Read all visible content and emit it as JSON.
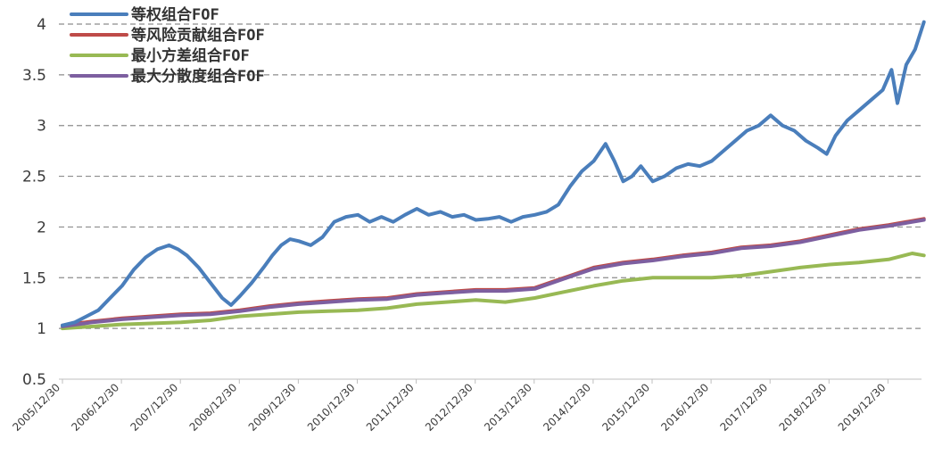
{
  "chart_data": {
    "type": "line",
    "ylim": [
      0.5,
      4
    ],
    "yticks": [
      "0.5",
      "1",
      "1.5",
      "2",
      "2.5",
      "3",
      "3.5",
      "4"
    ],
    "xticks": [
      "2005/12/30",
      "2006/12/30",
      "2007/12/30",
      "2008/12/30",
      "2009/12/30",
      "2010/12/30",
      "2011/12/30",
      "2012/12/30",
      "2013/12/30",
      "2014/12/30",
      "2015/12/30",
      "2016/12/30",
      "2017/12/30",
      "2018/12/30",
      "2019/12/30"
    ],
    "grid": true,
    "legend_position": "top-left",
    "series": [
      {
        "name": "等权组合FOF",
        "color": "#4a7ebb",
        "points": [
          [
            2005.99,
            1.03
          ],
          [
            2006.2,
            1.06
          ],
          [
            2006.4,
            1.12
          ],
          [
            2006.6,
            1.18
          ],
          [
            2006.8,
            1.3
          ],
          [
            2007.0,
            1.42
          ],
          [
            2007.2,
            1.58
          ],
          [
            2007.4,
            1.7
          ],
          [
            2007.6,
            1.78
          ],
          [
            2007.8,
            1.82
          ],
          [
            2007.95,
            1.78
          ],
          [
            2008.1,
            1.72
          ],
          [
            2008.3,
            1.6
          ],
          [
            2008.5,
            1.45
          ],
          [
            2008.7,
            1.3
          ],
          [
            2008.85,
            1.23
          ],
          [
            2009.0,
            1.32
          ],
          [
            2009.2,
            1.45
          ],
          [
            2009.4,
            1.6
          ],
          [
            2009.55,
            1.72
          ],
          [
            2009.7,
            1.82
          ],
          [
            2009.85,
            1.88
          ],
          [
            2010.0,
            1.86
          ],
          [
            2010.2,
            1.82
          ],
          [
            2010.4,
            1.9
          ],
          [
            2010.6,
            2.05
          ],
          [
            2010.8,
            2.1
          ],
          [
            2011.0,
            2.12
          ],
          [
            2011.2,
            2.05
          ],
          [
            2011.4,
            2.1
          ],
          [
            2011.6,
            2.05
          ],
          [
            2011.8,
            2.12
          ],
          [
            2012.0,
            2.18
          ],
          [
            2012.2,
            2.12
          ],
          [
            2012.4,
            2.15
          ],
          [
            2012.6,
            2.1
          ],
          [
            2012.8,
            2.12
          ],
          [
            2013.0,
            2.07
          ],
          [
            2013.2,
            2.08
          ],
          [
            2013.4,
            2.1
          ],
          [
            2013.6,
            2.05
          ],
          [
            2013.8,
            2.1
          ],
          [
            2014.0,
            2.12
          ],
          [
            2014.2,
            2.15
          ],
          [
            2014.4,
            2.22
          ],
          [
            2014.6,
            2.4
          ],
          [
            2014.8,
            2.55
          ],
          [
            2015.0,
            2.65
          ],
          [
            2015.2,
            2.82
          ],
          [
            2015.35,
            2.65
          ],
          [
            2015.5,
            2.45
          ],
          [
            2015.65,
            2.5
          ],
          [
            2015.8,
            2.6
          ],
          [
            2016.0,
            2.45
          ],
          [
            2016.2,
            2.5
          ],
          [
            2016.4,
            2.58
          ],
          [
            2016.6,
            2.62
          ],
          [
            2016.8,
            2.6
          ],
          [
            2017.0,
            2.65
          ],
          [
            2017.2,
            2.75
          ],
          [
            2017.4,
            2.85
          ],
          [
            2017.6,
            2.95
          ],
          [
            2017.8,
            3.0
          ],
          [
            2018.0,
            3.1
          ],
          [
            2018.2,
            3.0
          ],
          [
            2018.4,
            2.95
          ],
          [
            2018.6,
            2.85
          ],
          [
            2018.8,
            2.78
          ],
          [
            2018.95,
            2.72
          ],
          [
            2019.1,
            2.9
          ],
          [
            2019.3,
            3.05
          ],
          [
            2019.5,
            3.15
          ],
          [
            2019.7,
            3.25
          ],
          [
            2019.9,
            3.35
          ],
          [
            2020.05,
            3.55
          ],
          [
            2020.15,
            3.22
          ],
          [
            2020.3,
            3.6
          ],
          [
            2020.45,
            3.75
          ],
          [
            2020.6,
            4.02
          ]
        ]
      },
      {
        "name": "等风险贡献组合FOF",
        "color": "#be4b48",
        "points": [
          [
            2005.99,
            1.03
          ],
          [
            2006.5,
            1.07
          ],
          [
            2007.0,
            1.1
          ],
          [
            2007.5,
            1.12
          ],
          [
            2008.0,
            1.14
          ],
          [
            2008.5,
            1.15
          ],
          [
            2009.0,
            1.18
          ],
          [
            2009.5,
            1.22
          ],
          [
            2010.0,
            1.25
          ],
          [
            2010.5,
            1.27
          ],
          [
            2011.0,
            1.29
          ],
          [
            2011.5,
            1.3
          ],
          [
            2012.0,
            1.34
          ],
          [
            2012.5,
            1.36
          ],
          [
            2013.0,
            1.38
          ],
          [
            2013.5,
            1.38
          ],
          [
            2014.0,
            1.4
          ],
          [
            2014.5,
            1.5
          ],
          [
            2015.0,
            1.6
          ],
          [
            2015.5,
            1.65
          ],
          [
            2016.0,
            1.68
          ],
          [
            2016.5,
            1.72
          ],
          [
            2017.0,
            1.75
          ],
          [
            2017.5,
            1.8
          ],
          [
            2018.0,
            1.82
          ],
          [
            2018.5,
            1.86
          ],
          [
            2019.0,
            1.92
          ],
          [
            2019.5,
            1.98
          ],
          [
            2020.0,
            2.02
          ],
          [
            2020.6,
            2.08
          ]
        ]
      },
      {
        "name": "最小方差组合FOF",
        "color": "#98b954",
        "points": [
          [
            2005.99,
            1.0
          ],
          [
            2006.5,
            1.02
          ],
          [
            2007.0,
            1.04
          ],
          [
            2007.5,
            1.05
          ],
          [
            2008.0,
            1.06
          ],
          [
            2008.5,
            1.08
          ],
          [
            2009.0,
            1.12
          ],
          [
            2009.5,
            1.14
          ],
          [
            2010.0,
            1.16
          ],
          [
            2010.5,
            1.17
          ],
          [
            2011.0,
            1.18
          ],
          [
            2011.5,
            1.2
          ],
          [
            2012.0,
            1.24
          ],
          [
            2012.5,
            1.26
          ],
          [
            2013.0,
            1.28
          ],
          [
            2013.5,
            1.26
          ],
          [
            2014.0,
            1.3
          ],
          [
            2014.5,
            1.36
          ],
          [
            2015.0,
            1.42
          ],
          [
            2015.5,
            1.47
          ],
          [
            2016.0,
            1.5
          ],
          [
            2016.5,
            1.5
          ],
          [
            2017.0,
            1.5
          ],
          [
            2017.5,
            1.52
          ],
          [
            2018.0,
            1.56
          ],
          [
            2018.5,
            1.6
          ],
          [
            2019.0,
            1.63
          ],
          [
            2019.5,
            1.65
          ],
          [
            2020.0,
            1.68
          ],
          [
            2020.4,
            1.74
          ],
          [
            2020.6,
            1.72
          ]
        ]
      },
      {
        "name": "最大分散度组合FOF",
        "color": "#7d5fa0",
        "points": [
          [
            2005.99,
            1.02
          ],
          [
            2006.5,
            1.06
          ],
          [
            2007.0,
            1.09
          ],
          [
            2007.5,
            1.11
          ],
          [
            2008.0,
            1.13
          ],
          [
            2008.5,
            1.14
          ],
          [
            2009.0,
            1.17
          ],
          [
            2009.5,
            1.21
          ],
          [
            2010.0,
            1.24
          ],
          [
            2010.5,
            1.26
          ],
          [
            2011.0,
            1.28
          ],
          [
            2011.5,
            1.29
          ],
          [
            2012.0,
            1.33
          ],
          [
            2012.5,
            1.35
          ],
          [
            2013.0,
            1.37
          ],
          [
            2013.5,
            1.37
          ],
          [
            2014.0,
            1.39
          ],
          [
            2014.5,
            1.49
          ],
          [
            2015.0,
            1.59
          ],
          [
            2015.5,
            1.64
          ],
          [
            2016.0,
            1.67
          ],
          [
            2016.5,
            1.71
          ],
          [
            2017.0,
            1.74
          ],
          [
            2017.5,
            1.79
          ],
          [
            2018.0,
            1.81
          ],
          [
            2018.5,
            1.85
          ],
          [
            2019.0,
            1.91
          ],
          [
            2019.5,
            1.97
          ],
          [
            2020.0,
            2.01
          ],
          [
            2020.6,
            2.07
          ]
        ]
      }
    ]
  }
}
